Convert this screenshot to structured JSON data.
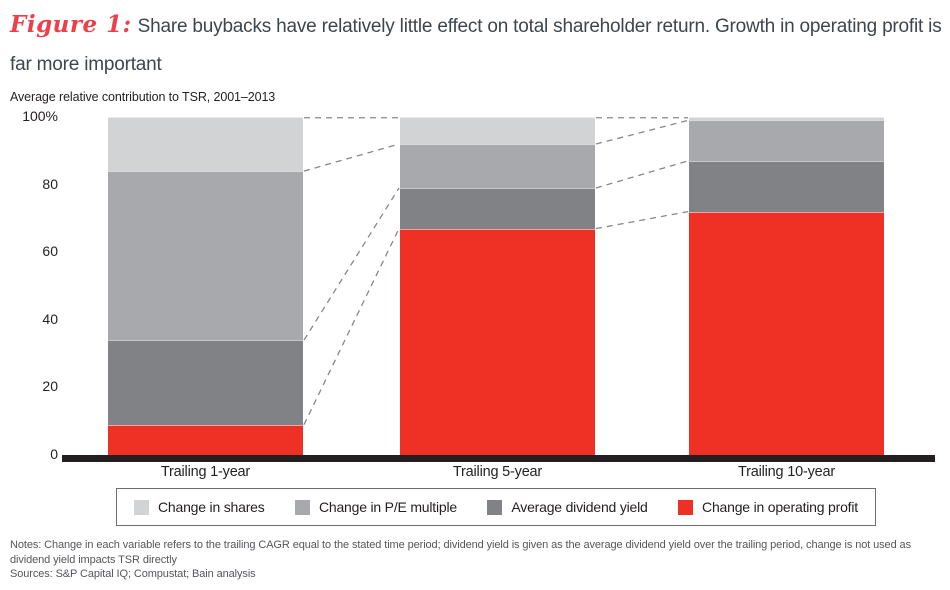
{
  "figure": {
    "label": "Figure 1:",
    "title": "Share buybacks have relatively little effect on total shareholder return. Growth in operating profit is far more important",
    "subtitle": "Average relative contribution to TSR, 2001–2013"
  },
  "chart_data": {
    "type": "bar",
    "stacked": true,
    "title": "Average relative contribution to TSR, 2001–2013",
    "categories": [
      "Trailing 1-year",
      "Trailing 5-year",
      "Trailing 10-year"
    ],
    "series": [
      {
        "name": "Change in operating profit",
        "color": "#ee3124",
        "values": [
          9,
          67,
          72
        ]
      },
      {
        "name": "Average dividend yield",
        "color": "#808285",
        "values": [
          25,
          12,
          15
        ]
      },
      {
        "name": "Change in P/E multiple",
        "color": "#a7a9ac",
        "values": [
          50,
          13,
          12
        ]
      },
      {
        "name": "Change in shares",
        "color": "#d1d3d4",
        "values": [
          16,
          8,
          1
        ]
      }
    ],
    "ylim": [
      0,
      100
    ],
    "yticks": [
      {
        "label": "100%",
        "value": 100
      },
      {
        "label": "80",
        "value": 80
      },
      {
        "label": "60",
        "value": 60
      },
      {
        "label": "40",
        "value": 40
      },
      {
        "label": "20",
        "value": 20
      },
      {
        "label": "0",
        "value": 0
      }
    ],
    "grid": false,
    "legend_position": "bottom",
    "connector_lines": "dashed lines join matching segment boundaries between adjacent bars"
  },
  "legend": {
    "items": [
      {
        "label": "Change in shares",
        "color": "#d1d3d4"
      },
      {
        "label": "Change in P/E multiple",
        "color": "#a7a9ac"
      },
      {
        "label": "Average dividend yield",
        "color": "#808285"
      },
      {
        "label": "Change in operating profit",
        "color": "#ee3124"
      }
    ]
  },
  "footnotes": {
    "notes": "Notes: Change in each variable refers to the trailing CAGR equal to the stated time period; dividend yield is given as the average dividend yield over the trailing period, change is not used as dividend yield impacts TSR directly",
    "sources": "Sources: S&P Capital IQ; Compustat; Bain analysis"
  },
  "colors": {
    "accent_red": "#ee3124",
    "figure_label_red": "#ed3f49",
    "title_text": "#3d464d",
    "axis_black": "#231f20",
    "connector_gray": "#85878a",
    "legend_border": "#6d6e71"
  }
}
